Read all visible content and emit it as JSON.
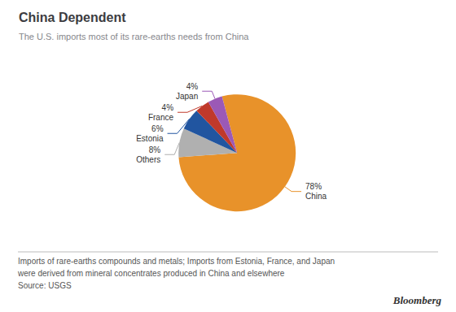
{
  "chart_data": {
    "type": "pie",
    "title": "China Dependent",
    "subtitle": "The U.S. imports most of its rare-earths needs from China",
    "categories": [
      "China",
      "Others",
      "Estonia",
      "France",
      "Japan"
    ],
    "values": [
      78,
      8,
      6,
      4,
      4
    ],
    "value_labels": [
      "78%",
      "8%",
      "6%",
      "4%",
      "4%"
    ],
    "colors": [
      "#E8922A",
      "#B0B0B0",
      "#2155A0",
      "#C0392B",
      "#9B59B6"
    ],
    "data_labels": true,
    "footnotes": [
      "Imports of rare-earths compounds and metals; Imports from Estonia, France, and Japan",
      "were derived from mineral concentrates produced in China and elsewhere",
      "Source: USGS"
    ],
    "annotations": [
      "Bloomberg"
    ]
  }
}
